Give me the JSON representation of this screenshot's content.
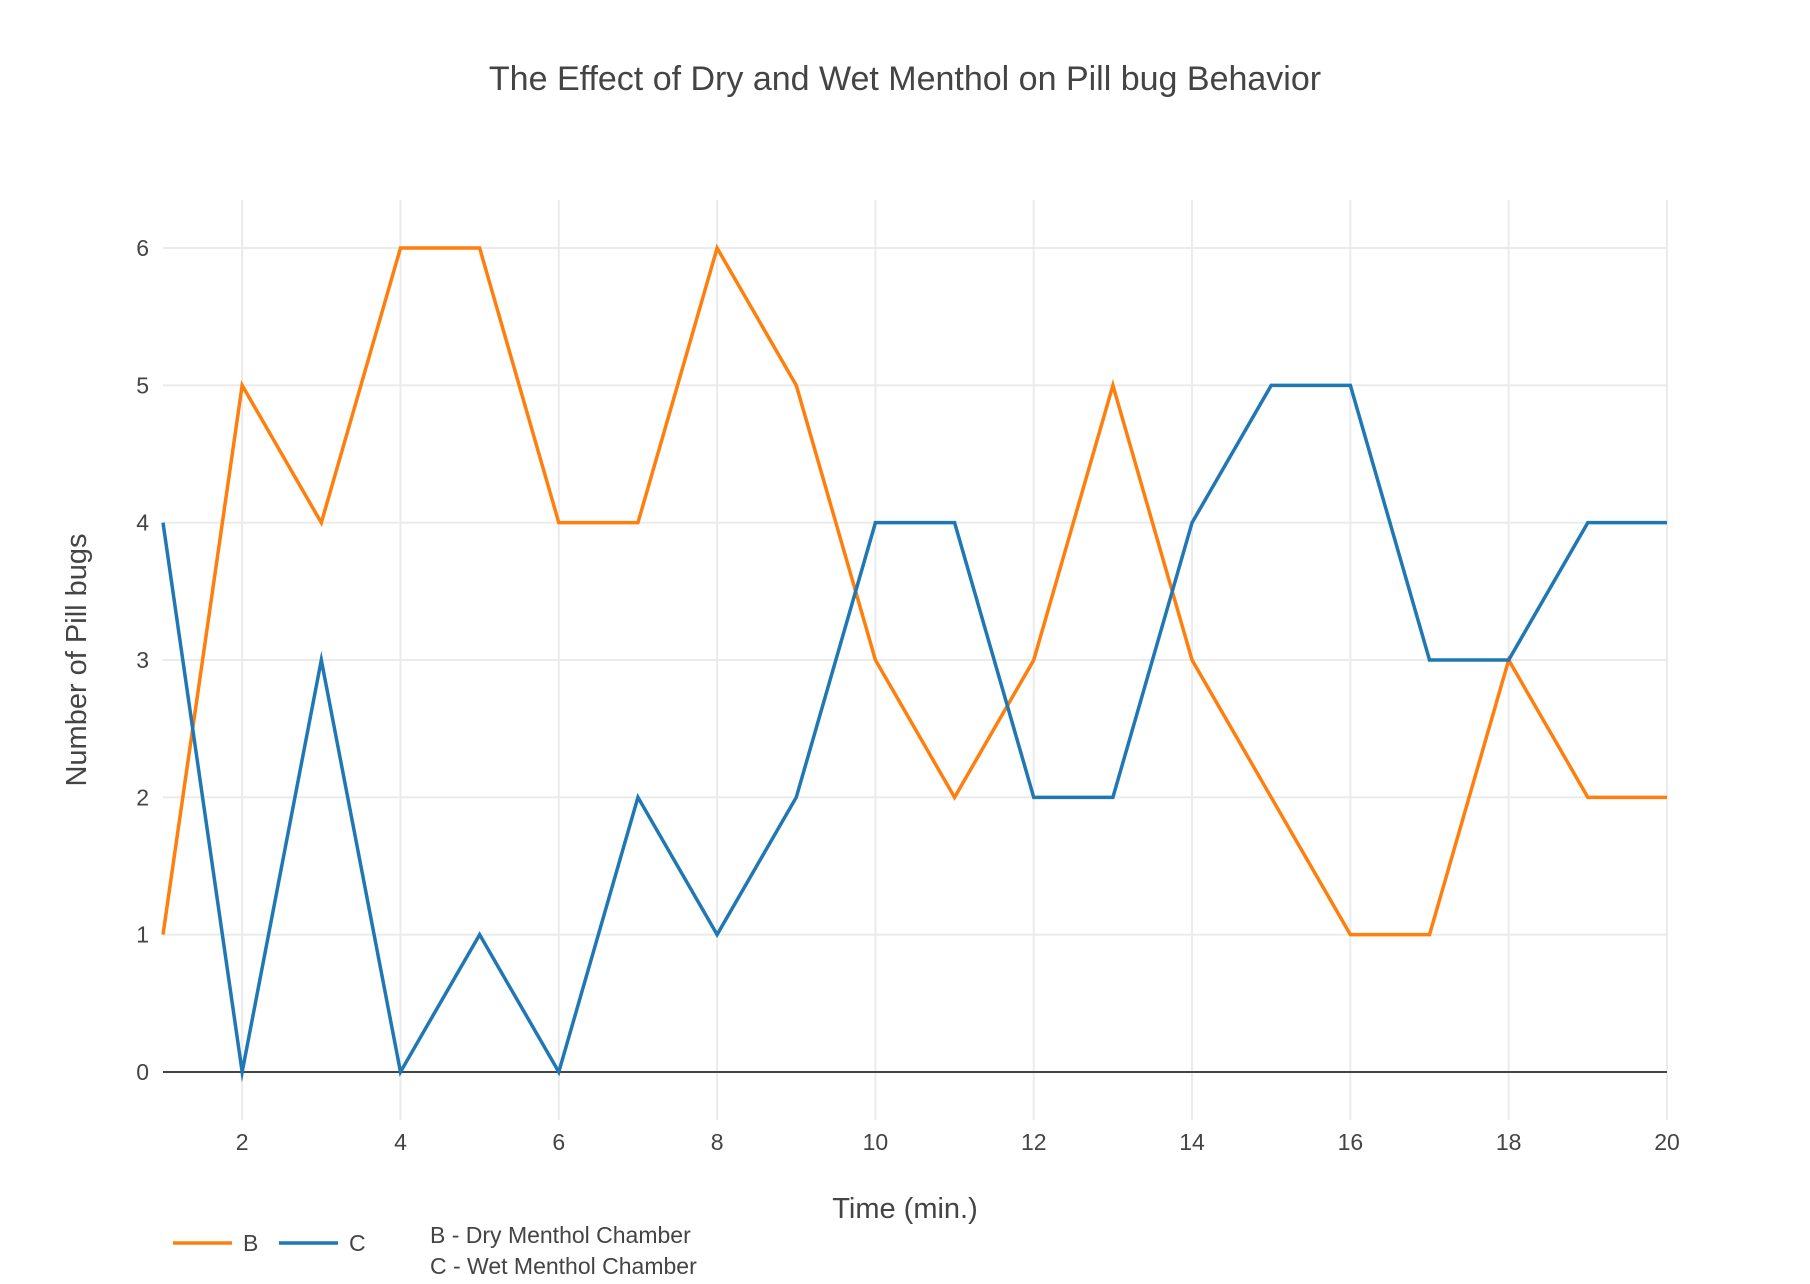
{
  "chart_data": {
    "type": "line",
    "title": "The Effect of Dry and Wet Menthol on Pill bug Behavior",
    "xlabel": "Time (min.)",
    "ylabel": "Number of Pill bugs",
    "xlim": [
      1,
      20
    ],
    "ylim": [
      -0.35,
      6.35
    ],
    "x_ticks": [
      2,
      4,
      6,
      8,
      10,
      12,
      14,
      16,
      18,
      20
    ],
    "y_ticks": [
      0,
      1,
      2,
      3,
      4,
      5,
      6
    ],
    "grid": true,
    "legend_position": "bottom-left",
    "x": [
      1,
      2,
      3,
      4,
      5,
      6,
      7,
      8,
      9,
      10,
      11,
      12,
      13,
      14,
      15,
      16,
      17,
      18,
      19,
      20
    ],
    "series": [
      {
        "name": "B",
        "color": "#ff7f0e",
        "values": [
          1,
          5,
          4,
          6,
          6,
          4,
          4,
          6,
          5,
          3,
          2,
          3,
          5,
          3,
          2,
          1,
          1,
          3,
          2,
          2
        ]
      },
      {
        "name": "C",
        "color": "#1f77b4",
        "values": [
          4,
          0,
          3,
          0,
          1,
          0,
          2,
          1,
          2,
          4,
          4,
          2,
          2,
          4,
          5,
          5,
          3,
          3,
          4,
          4
        ]
      }
    ],
    "annotation": [
      "B - Dry Menthol Chamber",
      "C - Wet Menthol Chamber"
    ]
  }
}
